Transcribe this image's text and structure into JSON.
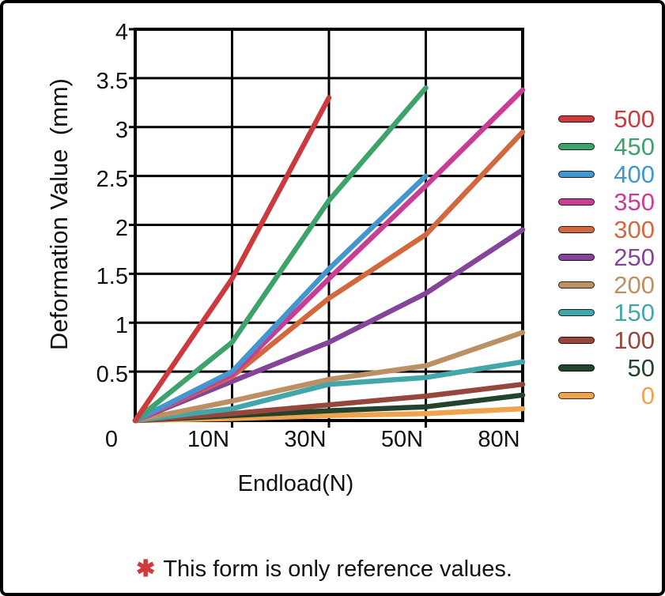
{
  "chart_data": {
    "type": "line",
    "title": "",
    "xlabel": "Endload(N)",
    "ylabel": "Deformation Value  (mm)",
    "x_tick_labels": [
      "0",
      "10N",
      "30N",
      "50N",
      "80N"
    ],
    "x_tick_values": [
      0,
      10,
      30,
      50,
      80
    ],
    "y_tick_labels": [
      "0.5",
      "1",
      "1.5",
      "2",
      "2.5",
      "3",
      "3.5",
      "4"
    ],
    "y_tick_values": [
      0.5,
      1,
      1.5,
      2,
      2.5,
      3,
      3.5,
      4
    ],
    "ylim": [
      0,
      4
    ],
    "grid": true,
    "grid_color": "#000000",
    "legend_position": "right",
    "series": [
      {
        "name": "500",
        "color": "#cb3a3c",
        "x": [
          0,
          10,
          30
        ],
        "y": [
          0,
          1.45,
          3.3
        ]
      },
      {
        "name": "450",
        "color": "#3da36b",
        "x": [
          0,
          10,
          30,
          50
        ],
        "y": [
          0,
          0.8,
          2.25,
          3.4
        ]
      },
      {
        "name": "400",
        "color": "#4496ce",
        "x": [
          0,
          10,
          30,
          50
        ],
        "y": [
          0,
          0.5,
          1.55,
          2.5
        ]
      },
      {
        "name": "350",
        "color": "#ca3d94",
        "x": [
          0,
          10,
          30,
          50,
          80
        ],
        "y": [
          0,
          0.47,
          1.45,
          2.4,
          3.38
        ]
      },
      {
        "name": "300",
        "color": "#d2693e",
        "x": [
          0,
          10,
          30,
          50,
          80
        ],
        "y": [
          0,
          0.45,
          1.25,
          1.9,
          2.95
        ]
      },
      {
        "name": "250",
        "color": "#84449a",
        "x": [
          0,
          10,
          30,
          50,
          80
        ],
        "y": [
          0,
          0.4,
          0.8,
          1.3,
          1.95
        ]
      },
      {
        "name": "200",
        "color": "#bc9065",
        "x": [
          0,
          10,
          30,
          50,
          80
        ],
        "y": [
          0,
          0.2,
          0.42,
          0.56,
          0.9
        ]
      },
      {
        "name": "150",
        "color": "#42a6aa",
        "x": [
          0,
          10,
          30,
          50,
          80
        ],
        "y": [
          0,
          0.12,
          0.37,
          0.44,
          0.6
        ]
      },
      {
        "name": "100",
        "color": "#96463a",
        "x": [
          0,
          10,
          30,
          50,
          80
        ],
        "y": [
          0,
          0.07,
          0.16,
          0.25,
          0.37
        ]
      },
      {
        "name": "50",
        "color": "#23432c",
        "x": [
          0,
          10,
          30,
          50,
          80
        ],
        "y": [
          0,
          0.05,
          0.1,
          0.14,
          0.26
        ]
      },
      {
        "name": "0",
        "color": "#efa34d",
        "x": [
          0,
          10,
          30,
          50,
          80
        ],
        "y": [
          0,
          0.02,
          0.05,
          0.07,
          0.12
        ]
      }
    ]
  },
  "footer": {
    "asterisk": "✱",
    "asterisk_color": "#d03a3a",
    "note": "This form is only reference values."
  }
}
